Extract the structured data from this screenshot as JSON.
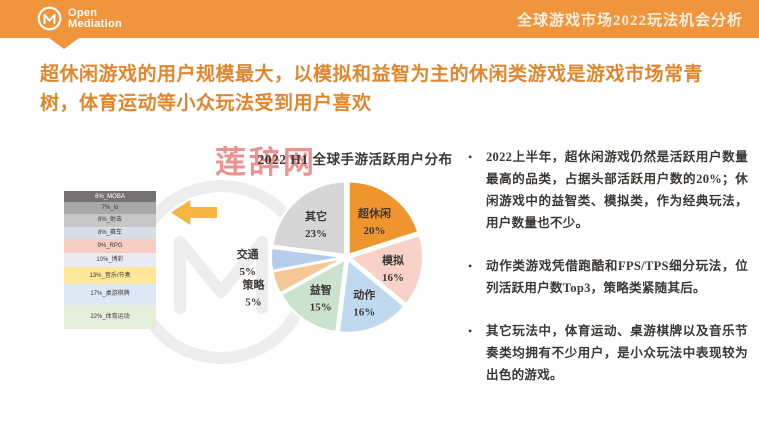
{
  "header": {
    "brand_line1": "Open",
    "brand_line2": "Mediation",
    "title": "全球游戏市场2022玩法机会分析"
  },
  "slide_title": "超休闲游戏的用户规模最大，以模拟和益智为主的休闲类游戏是游戏市场常青树，体育运动等小众玩法受到用户喜欢",
  "watermark_text": "莲辞网",
  "accent_colors": {
    "header_orange": "#F0953C",
    "title_orange": "#E2862D",
    "arrow_gold": "#F5B53E",
    "watermark_red": "#DE4A4A",
    "body_text": "#3B3835"
  },
  "chart_data": [
    {
      "type": "pie",
      "title": "2022 H1 全球手游活跃用户分布",
      "start_angle_deg": 0,
      "direction": "clockwise",
      "slices": [
        {
          "label": "超休闲",
          "value": 20,
          "color": "#F0942D",
          "label_inside": true
        },
        {
          "label": "模拟",
          "value": 16,
          "color": "#F8D2C9",
          "label_inside": true
        },
        {
          "label": "动作",
          "value": 16,
          "color": "#BFD9EF",
          "label_inside": true
        },
        {
          "label": "益智",
          "value": 15,
          "color": "#CBE2CC",
          "label_inside": true
        },
        {
          "label": "策略",
          "value": 5,
          "color": "#F6C896",
          "label_inside": false
        },
        {
          "label": "交通",
          "value": 5,
          "color": "#B8CCEC",
          "label_inside": false
        },
        {
          "label": "其它",
          "value": 23,
          "color": "#D6D6D6",
          "label_inside": true
        }
      ]
    },
    {
      "type": "bar",
      "subtype": "stacked-vertical-100pct",
      "title": "",
      "segments": [
        {
          "label": "6%_MOBA",
          "value": 6,
          "color": "#777171",
          "text_color": "#FFFFFF"
        },
        {
          "label": "7%_io",
          "value": 7,
          "color": "#A8A8A8",
          "text_color": "#3B3835"
        },
        {
          "label": "8%_射击",
          "value": 8,
          "color": "#C6C6C6",
          "text_color": "#3B3835"
        },
        {
          "label": "8%_赛车",
          "value": 8,
          "color": "#D8DEE8",
          "text_color": "#3B3835"
        },
        {
          "label": "9%_RPG",
          "value": 9,
          "color": "#F5CDC2",
          "text_color": "#3B3835"
        },
        {
          "label": "10%_博彩",
          "value": 10,
          "color": "#EBE9F4",
          "text_color": "#3B3835"
        },
        {
          "label": "13%_音乐/节奏",
          "value": 13,
          "color": "#FFE699",
          "text_color": "#3B3835"
        },
        {
          "label": "17%_桌游棋牌",
          "value": 17,
          "color": "#DCE9F5",
          "text_color": "#3B3835"
        },
        {
          "label": "22%_体育运动",
          "value": 22,
          "color": "#E3EFDB",
          "text_color": "#3B3835"
        }
      ]
    }
  ],
  "bullets": [
    "2022上半年，超休闲游戏仍然是活跃用户数量最高的品类，占据头部活跃用户数的20%；休闲游戏中的益智类、模拟类，作为经典玩法，用户数量也不少。",
    "动作类游戏凭借跑酷和FPS/TPS细分玩法，位列活跃用户数Top3，策略类紧随其后。",
    "其它玩法中，体育运动、桌游棋牌以及音乐节奏类均拥有不少用户，是小众玩法中表现较为出色的游戏。"
  ]
}
